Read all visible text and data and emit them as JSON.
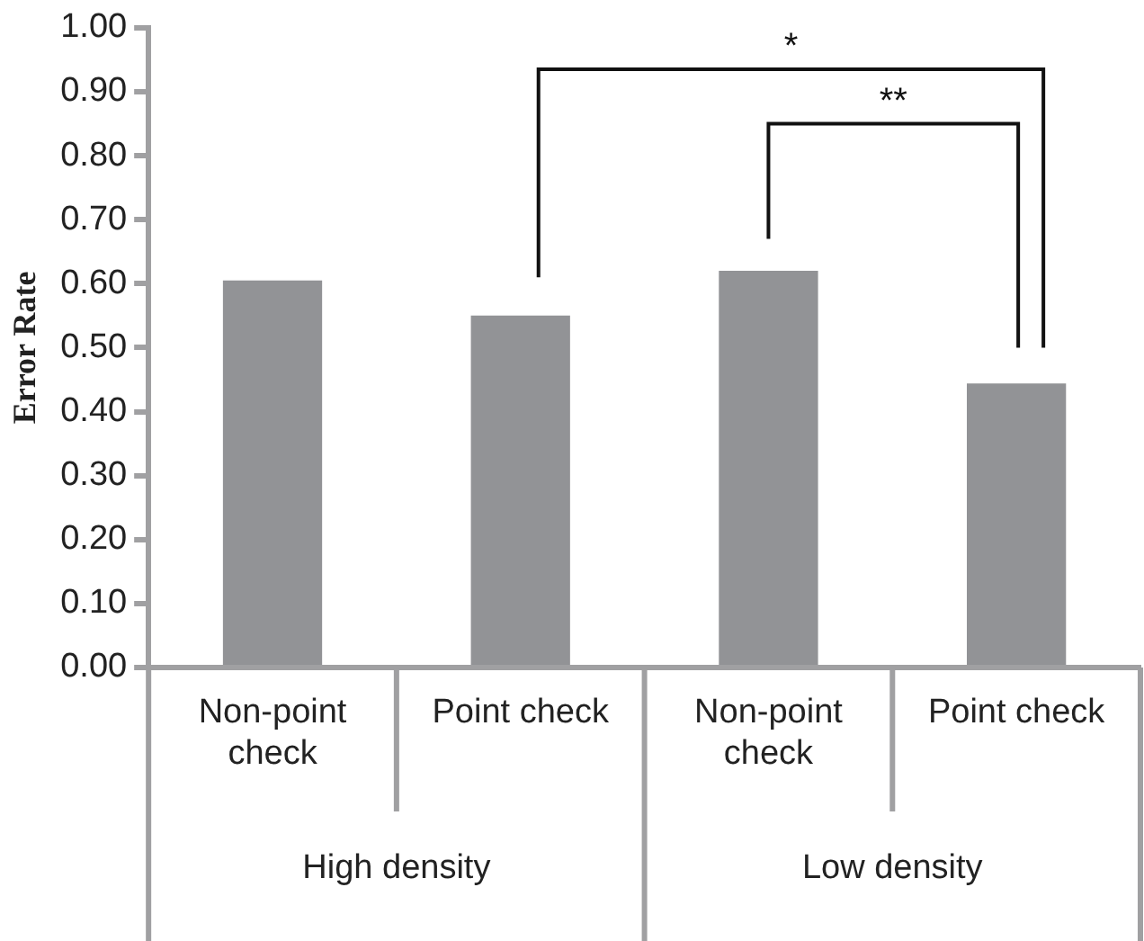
{
  "chart_data": {
    "type": "bar",
    "categories": [
      "Non-point check",
      "Point check",
      "Non-point check",
      "Point check"
    ],
    "values": [
      0.605,
      0.55,
      0.62,
      0.444
    ],
    "color": "#929396",
    "ylabel": "Error Rate",
    "ylim": [
      0,
      1
    ],
    "yticks": [
      {
        "value": 0,
        "label": "0.00"
      },
      {
        "value": 0.1,
        "label": "0.10"
      },
      {
        "value": 0.2,
        "label": "0.20"
      },
      {
        "value": 0.3,
        "label": "0.30"
      },
      {
        "value": 0.4,
        "label": "0.40"
      },
      {
        "value": 0.5,
        "label": "0.50"
      },
      {
        "value": 0.6,
        "label": "0.60"
      },
      {
        "value": 0.7,
        "label": "0.70"
      },
      {
        "value": 0.8,
        "label": "0.80"
      },
      {
        "value": 0.9,
        "label": "0.90"
      },
      {
        "value": 1,
        "label": "1.00"
      }
    ],
    "grid": false,
    "legend": false,
    "annotations": [
      "*",
      "**",
      "High density",
      "Low density"
    ]
  }
}
